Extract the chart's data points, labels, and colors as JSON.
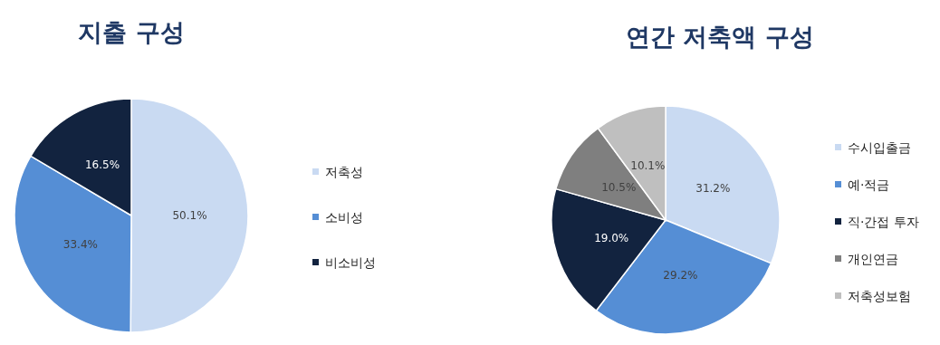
{
  "chart_data": [
    {
      "type": "pie",
      "title": "지출 구성",
      "categories": [
        "저축성",
        "소비성",
        "비소비성"
      ],
      "values": [
        50.1,
        33.4,
        16.5
      ],
      "colors": [
        "#c9daf2",
        "#558ed5",
        "#12233f"
      ],
      "value_labels": [
        "50.1%",
        "33.4%",
        "16.5%"
      ],
      "legend": "right"
    },
    {
      "type": "pie",
      "title": "연간 저축액 구성",
      "categories": [
        "수시입출금",
        "예·적금",
        "직·간접 투자",
        "개인연금",
        "저축성보험"
      ],
      "values": [
        31.2,
        29.2,
        19.0,
        10.5,
        10.1
      ],
      "colors": [
        "#c9daf2",
        "#558ed5",
        "#12233f",
        "#7f7f7f",
        "#bfbfbf"
      ],
      "value_labels": [
        "31.2%",
        "29.2%",
        "19.0%",
        "10.5%",
        "10.1%"
      ],
      "legend": "right"
    }
  ]
}
